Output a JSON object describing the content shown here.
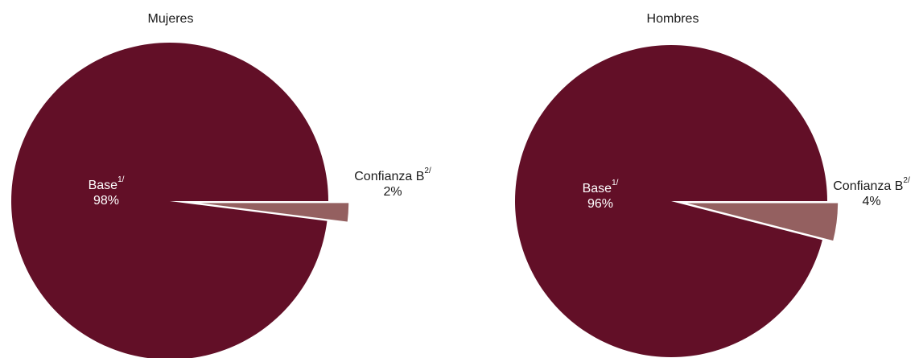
{
  "charts": [
    {
      "title": "Mujeres",
      "slices": [
        {
          "label": "Base",
          "sup": "1/",
          "pct_text": "98%",
          "value": 98,
          "color": "#620f27",
          "exploded": false
        },
        {
          "label": "Confianza B",
          "sup": "2/",
          "pct_text": "2%",
          "value": 2,
          "color": "#946060",
          "exploded": true
        }
      ]
    },
    {
      "title": "Hombres",
      "slices": [
        {
          "label": "Base",
          "sup": "1/",
          "pct_text": "96%",
          "value": 96,
          "color": "#620f27",
          "exploded": false
        },
        {
          "label": "Confianza B",
          "sup": "2/",
          "pct_text": "4%",
          "value": 4,
          "color": "#946060",
          "exploded": true
        }
      ]
    }
  ],
  "chart_data": [
    {
      "type": "pie",
      "title": "Mujeres",
      "categories": [
        "Base 1/",
        "Confianza B 2/"
      ],
      "values": [
        98,
        2
      ],
      "colors": [
        "#620f27",
        "#946060"
      ]
    },
    {
      "type": "pie",
      "title": "Hombres",
      "categories": [
        "Base 1/",
        "Confianza B 2/"
      ],
      "values": [
        96,
        4
      ],
      "colors": [
        "#620f27",
        "#946060"
      ]
    }
  ]
}
